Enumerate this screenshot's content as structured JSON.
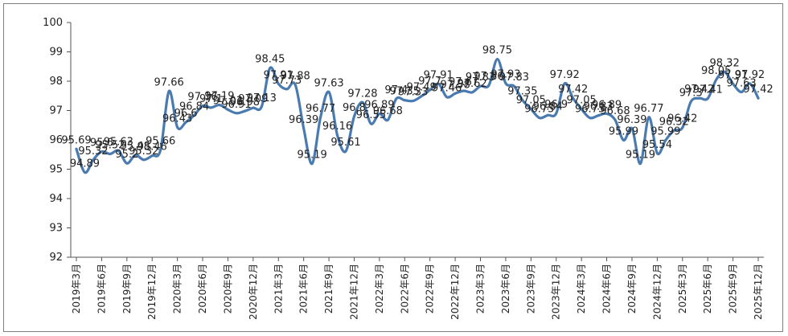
{
  "chart_data": {
    "type": "line",
    "title": "",
    "xlabel": "",
    "ylabel": "",
    "ylim": [
      92,
      100
    ],
    "yticks": [
      92,
      93,
      94,
      95,
      96,
      97,
      98,
      99,
      100
    ],
    "grid": false,
    "legend": "none",
    "line_color": "#4a7bb0",
    "categories": [
      "2019年3月",
      "2019年4月",
      "2019年5月",
      "2019年6月",
      "2019年7月",
      "2019年8月",
      "2019年9月",
      "2019年10月",
      "2019年11月",
      "2019年12月",
      "2020年1月",
      "2020年2月",
      "2020年3月",
      "2020年4月",
      "2020年5月",
      "2020年6月",
      "2020年7月",
      "2020年8月",
      "2020年9月",
      "2020年10月",
      "2020年11月",
      "2020年12月",
      "2021年1月",
      "2021年2月",
      "2021年3月",
      "2021年4月",
      "2021年5月",
      "2021年6月",
      "2021年7月",
      "2021年8月",
      "2021年9月",
      "2021年10月",
      "2021年11月",
      "2021年12月",
      "2022年1月",
      "2022年2月",
      "2022年3月",
      "2022年4月",
      "2022年5月",
      "2022年6月",
      "2022年7月",
      "2022年8月",
      "2022年9月",
      "2022年10月",
      "2022年11月",
      "2022年12月",
      "2023年1月",
      "2023年2月",
      "2023年3月",
      "2023年4月",
      "2023年5月",
      "2023年6月",
      "2023年7月",
      "2023年8月",
      "2023年9月",
      "2023年10月",
      "2023年11月",
      "2023年12月",
      "2024年1月",
      "2024年2月",
      "2024年3月",
      "2024年4月",
      "2024年5月",
      "2024年6月",
      "2024年7月",
      "2024年8月",
      "2024年9月",
      "2024年10月",
      "2024年11月",
      "2024年12月",
      "2025年1月",
      "2025年2月",
      "2025年3月",
      "2025年4月",
      "2025年5月",
      "2025年6月",
      "2025年7月",
      "2025年8月",
      "2025年9月",
      "2025年10月",
      "2025年11月",
      "2025年12月"
    ],
    "x_tick_labels": [
      "2019年3月",
      "2019年6月",
      "2019年9月",
      "2019年12月",
      "2020年3月",
      "2020年6月",
      "2020年9月",
      "2020年12月",
      "2021年3月",
      "2021年6月",
      "2021年9月",
      "2021年12月",
      "2022年3月",
      "2022年6月",
      "2022年9月",
      "2022年12月",
      "2023年3月",
      "2023年6月",
      "2023年9月",
      "2023年12月",
      "2024年3月",
      "2024年6月",
      "2024年9月",
      "2024年12月",
      "2025年3月",
      "2025年6月",
      "2025年9月",
      "2025年12月"
    ],
    "values": [
      95.69,
      94.89,
      95.32,
      95.6,
      95.52,
      95.63,
      95.2,
      95.48,
      95.32,
      95.46,
      95.66,
      97.66,
      96.43,
      96.6,
      96.84,
      97.16,
      97.1,
      97.19,
      97.03,
      96.91,
      96.98,
      97.09,
      97.13,
      98.45,
      97.91,
      97.73,
      97.88,
      96.39,
      95.19,
      96.77,
      97.63,
      96.16,
      95.61,
      96.8,
      97.28,
      96.55,
      96.89,
      96.68,
      97.4,
      97.35,
      97.33,
      97.49,
      97.7,
      97.91,
      97.46,
      97.58,
      97.67,
      97.62,
      97.83,
      97.86,
      98.75,
      97.93,
      97.83,
      97.35,
      97.05,
      96.75,
      96.84,
      96.9,
      97.92,
      97.42,
      97.05,
      96.75,
      96.83,
      96.89,
      96.68,
      95.99,
      96.39,
      95.19,
      96.77,
      95.54,
      95.99,
      96.32,
      96.42,
      97.3,
      97.42,
      97.41,
      98.05,
      98.32,
      97.91,
      97.63,
      97.92,
      97.42
    ]
  }
}
